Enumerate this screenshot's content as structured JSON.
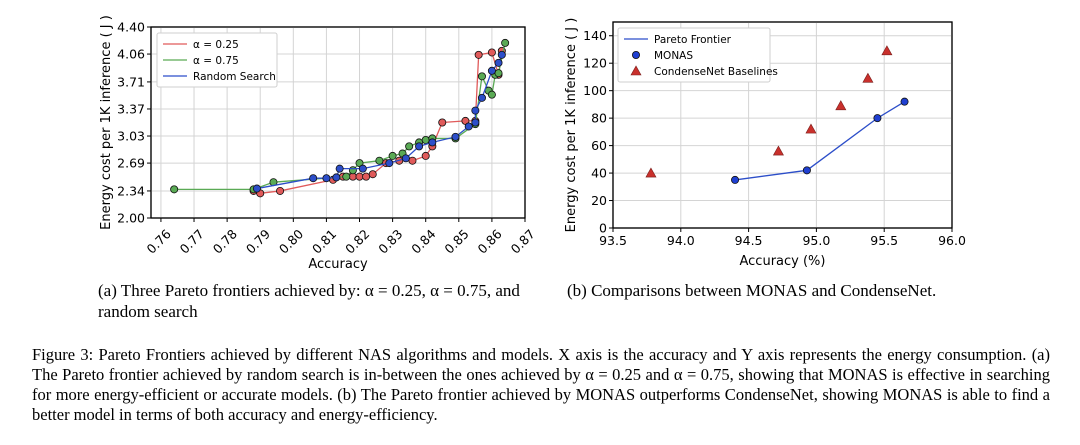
{
  "chart_data": [
    {
      "type": "line",
      "xlabel": "Accuracy",
      "ylabel": "Energy cost per 1K inference ( J )",
      "xlim": [
        0.757,
        0.87
      ],
      "ylim": [
        2.0,
        4.4
      ],
      "xticks": [
        "0.76",
        "0.77",
        "0.78",
        "0.79",
        "0.80",
        "0.81",
        "0.82",
        "0.83",
        "0.84",
        "0.85",
        "0.86",
        "0.87"
      ],
      "yticks": [
        "2.00",
        "2.34",
        "2.69",
        "3.03",
        "3.37",
        "3.71",
        "4.06",
        "4.40"
      ],
      "legend_position": "top-left",
      "grid": true,
      "series": [
        {
          "name": "α = 0.25",
          "color": "#e05a5a",
          "points": [
            [
              0.788,
              2.34
            ],
            [
              0.79,
              2.31
            ],
            [
              0.796,
              2.34
            ],
            [
              0.812,
              2.48
            ],
            [
              0.815,
              2.52
            ],
            [
              0.818,
              2.52
            ],
            [
              0.82,
              2.52
            ],
            [
              0.822,
              2.52
            ],
            [
              0.824,
              2.55
            ],
            [
              0.828,
              2.69
            ],
            [
              0.832,
              2.72
            ],
            [
              0.836,
              2.72
            ],
            [
              0.84,
              2.78
            ],
            [
              0.842,
              2.9
            ],
            [
              0.845,
              3.2
            ],
            [
              0.852,
              3.22
            ],
            [
              0.855,
              3.22
            ],
            [
              0.856,
              4.05
            ],
            [
              0.86,
              4.08
            ],
            [
              0.862,
              3.8
            ],
            [
              0.863,
              4.1
            ]
          ]
        },
        {
          "name": "α = 0.75",
          "color": "#5aaa55",
          "points": [
            [
              0.764,
              2.36
            ],
            [
              0.788,
              2.36
            ],
            [
              0.794,
              2.45
            ],
            [
              0.816,
              2.52
            ],
            [
              0.818,
              2.6
            ],
            [
              0.82,
              2.69
            ],
            [
              0.826,
              2.72
            ],
            [
              0.83,
              2.78
            ],
            [
              0.833,
              2.81
            ],
            [
              0.835,
              2.9
            ],
            [
              0.838,
              2.95
            ],
            [
              0.84,
              2.98
            ],
            [
              0.842,
              3.0
            ],
            [
              0.849,
              3.0
            ],
            [
              0.855,
              3.18
            ],
            [
              0.857,
              3.78
            ],
            [
              0.859,
              3.6
            ],
            [
              0.86,
              3.55
            ],
            [
              0.861,
              3.8
            ],
            [
              0.862,
              3.82
            ],
            [
              0.864,
              4.2
            ]
          ]
        },
        {
          "name": "Random Search",
          "color": "#2c4ec9",
          "points": [
            [
              0.789,
              2.37
            ],
            [
              0.806,
              2.5
            ],
            [
              0.81,
              2.5
            ],
            [
              0.813,
              2.51
            ],
            [
              0.814,
              2.62
            ],
            [
              0.821,
              2.62
            ],
            [
              0.829,
              2.69
            ],
            [
              0.834,
              2.75
            ],
            [
              0.838,
              2.9
            ],
            [
              0.842,
              2.95
            ],
            [
              0.849,
              3.02
            ],
            [
              0.853,
              3.15
            ],
            [
              0.855,
              3.2
            ],
            [
              0.855,
              3.35
            ],
            [
              0.857,
              3.51
            ],
            [
              0.86,
              3.85
            ],
            [
              0.862,
              3.95
            ],
            [
              0.863,
              4.05
            ]
          ]
        }
      ]
    },
    {
      "type": "scatter",
      "xlabel": "Accuracy (%)",
      "ylabel": "Energy cost per 1K inference ( J )",
      "xlim": [
        93.5,
        96.0
      ],
      "ylim": [
        0,
        150
      ],
      "xticks": [
        "93.5",
        "94.0",
        "94.5",
        "95.0",
        "95.5",
        "96.0"
      ],
      "yticks": [
        "0",
        "20",
        "40",
        "60",
        "80",
        "100",
        "120",
        "140"
      ],
      "legend_position": "top-left",
      "grid": true,
      "series": [
        {
          "name": "Pareto Frontier",
          "color": "#2c4ec9",
          "style": "line",
          "points": [
            [
              94.4,
              35
            ],
            [
              94.93,
              42
            ],
            [
              95.45,
              80
            ],
            [
              95.65,
              92
            ]
          ]
        },
        {
          "name": "MONAS",
          "color": "#1f3fd1",
          "style": "circle",
          "points": [
            [
              94.4,
              35
            ],
            [
              94.93,
              42
            ],
            [
              95.45,
              80
            ],
            [
              95.65,
              92
            ]
          ]
        },
        {
          "name": "CondenseNet Baselines",
          "color": "#c9302c",
          "style": "triangle",
          "points": [
            [
              93.78,
              40
            ],
            [
              94.72,
              56
            ],
            [
              94.96,
              72
            ],
            [
              95.18,
              89
            ],
            [
              95.38,
              109
            ],
            [
              95.52,
              129
            ]
          ]
        }
      ]
    }
  ],
  "captions": {
    "sub_a": "(a) Three Pareto frontiers achieved by: α = 0.25, α = 0.75, and random search",
    "sub_b": "(b) Comparisons between MONAS and CondenseNet.",
    "figure_label": "Figure 3:",
    "figure_text": "Pareto Frontiers achieved by different NAS algorithms and models. X axis is the accuracy and Y axis represents the energy consumption. (a) The Pareto frontier achieved by random search is in-between the ones achieved by α = 0.25 and α = 0.75, showing that MONAS is effective in searching for more energy-efficient or accurate models. (b) The Pareto frontier achieved by MONAS outperforms CondenseNet, showing MONAS is able to find a better model in terms of both accuracy and energy-efficiency."
  }
}
